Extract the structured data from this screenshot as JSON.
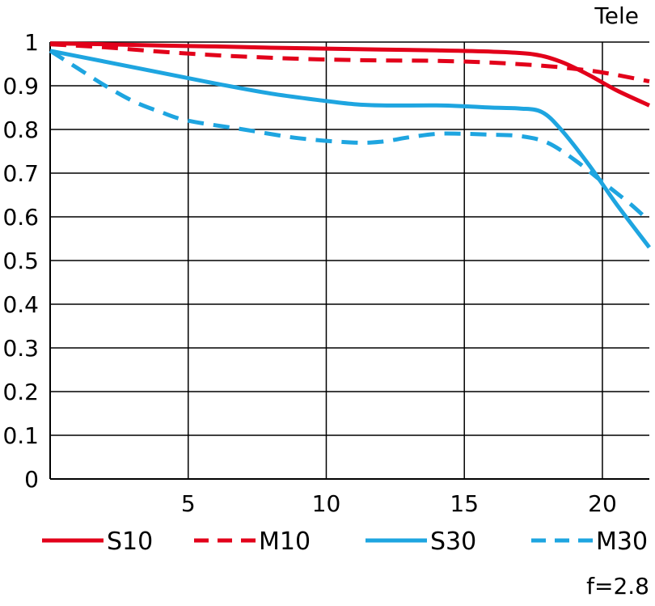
{
  "chart_data": {
    "type": "line",
    "title": "",
    "corner_label_top": "Tele",
    "corner_label_bottom": "f=2.8",
    "xlabel": "",
    "ylabel": "",
    "xlim": [
      0,
      21.7
    ],
    "ylim": [
      0,
      1
    ],
    "x_ticks": [
      5,
      10,
      15,
      20
    ],
    "x_tick_labels": [
      "5",
      "10",
      "15",
      "20"
    ],
    "y_ticks": [
      0,
      0.1,
      0.2,
      0.3,
      0.4,
      0.5,
      0.6,
      0.7,
      0.8,
      0.9,
      1
    ],
    "y_tick_labels": [
      "0",
      "0.1",
      "0.2",
      "0.3",
      "0.4",
      "0.5",
      "0.6",
      "0.7",
      "0.8",
      "0.9",
      "1"
    ],
    "grid": true,
    "legend_position": "bottom",
    "series": [
      {
        "name": "S10",
        "color": "#e2001a",
        "dashed": false,
        "points": [
          [
            0,
            0.997
          ],
          [
            2,
            0.995
          ],
          [
            4,
            0.992
          ],
          [
            6,
            0.99
          ],
          [
            8,
            0.987
          ],
          [
            10,
            0.985
          ],
          [
            12,
            0.983
          ],
          [
            14,
            0.981
          ],
          [
            16,
            0.978
          ],
          [
            17.5,
            0.972
          ],
          [
            18.5,
            0.955
          ],
          [
            19.5,
            0.925
          ],
          [
            20.5,
            0.89
          ],
          [
            21.7,
            0.855
          ]
        ]
      },
      {
        "name": "M10",
        "color": "#e2001a",
        "dashed": true,
        "points": [
          [
            0,
            0.995
          ],
          [
            2,
            0.988
          ],
          [
            4,
            0.978
          ],
          [
            6,
            0.97
          ],
          [
            8,
            0.964
          ],
          [
            10,
            0.96
          ],
          [
            12,
            0.958
          ],
          [
            14,
            0.957
          ],
          [
            16,
            0.953
          ],
          [
            18,
            0.945
          ],
          [
            19.5,
            0.935
          ],
          [
            20.5,
            0.925
          ],
          [
            21.7,
            0.91
          ]
        ]
      },
      {
        "name": "S30",
        "color": "#1ea5e0",
        "dashed": false,
        "points": [
          [
            0,
            0.98
          ],
          [
            2,
            0.955
          ],
          [
            4,
            0.93
          ],
          [
            6,
            0.905
          ],
          [
            8,
            0.882
          ],
          [
            10,
            0.865
          ],
          [
            11,
            0.858
          ],
          [
            12,
            0.855
          ],
          [
            14,
            0.855
          ],
          [
            15,
            0.853
          ],
          [
            16,
            0.85
          ],
          [
            17,
            0.848
          ],
          [
            17.8,
            0.84
          ],
          [
            18.5,
            0.8
          ],
          [
            19.5,
            0.72
          ],
          [
            20.5,
            0.63
          ],
          [
            21.7,
            0.53
          ]
        ]
      },
      {
        "name": "M30",
        "color": "#1ea5e0",
        "dashed": true,
        "points": [
          [
            0,
            0.98
          ],
          [
            1,
            0.94
          ],
          [
            2,
            0.9
          ],
          [
            3,
            0.865
          ],
          [
            4,
            0.84
          ],
          [
            5,
            0.82
          ],
          [
            7,
            0.8
          ],
          [
            9,
            0.78
          ],
          [
            11,
            0.77
          ],
          [
            12,
            0.772
          ],
          [
            13,
            0.782
          ],
          [
            14,
            0.79
          ],
          [
            15,
            0.79
          ],
          [
            16,
            0.788
          ],
          [
            17,
            0.785
          ],
          [
            18,
            0.77
          ],
          [
            19,
            0.73
          ],
          [
            20,
            0.68
          ],
          [
            21,
            0.63
          ],
          [
            21.7,
            0.59
          ]
        ]
      }
    ]
  }
}
